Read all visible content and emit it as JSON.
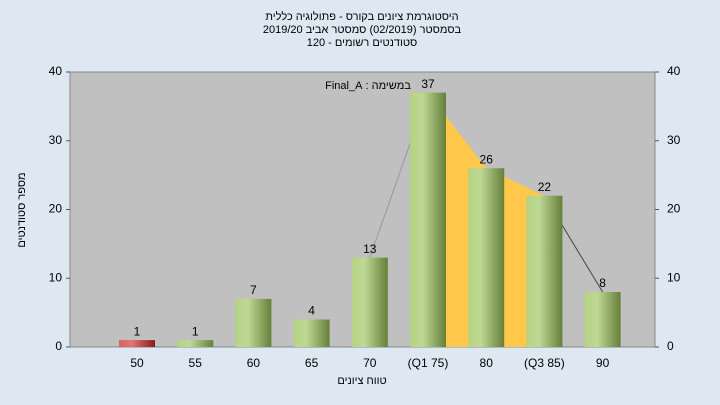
{
  "chart_data": {
    "type": "bar",
    "title": [
      "היסטוגרמת ציונים בקורס - פתולוגיה כללית",
      "בסמסטר  (02/2019)  סמסטר אביב 2019/20",
      "סטודנטים רשומים - 120"
    ],
    "annotation": "במשימה : Final_A",
    "x_label": "טווח ציונים",
    "y_label": "מספר סטודנטים",
    "categories": [
      "50",
      "55",
      "60",
      "65",
      "70",
      "(Q1 75)",
      "80",
      "(Q3 85)",
      "90"
    ],
    "values": [
      1,
      1,
      7,
      4,
      13,
      37,
      26,
      22,
      8
    ],
    "colors": [
      "#d42a2a",
      "#9cc45a",
      "#9cc45a",
      "#9cc45a",
      "#9cc45a",
      "#9cc45a",
      "#9cc45a",
      "#9cc45a",
      "#9cc45a"
    ],
    "area_color": "#ffc84a",
    "ylim": [
      0,
      40
    ],
    "yticks": [
      0,
      10,
      20,
      30,
      40
    ],
    "y2lim": [
      0,
      40
    ],
    "y2ticks": [
      0,
      10,
      20,
      30,
      40
    ]
  }
}
